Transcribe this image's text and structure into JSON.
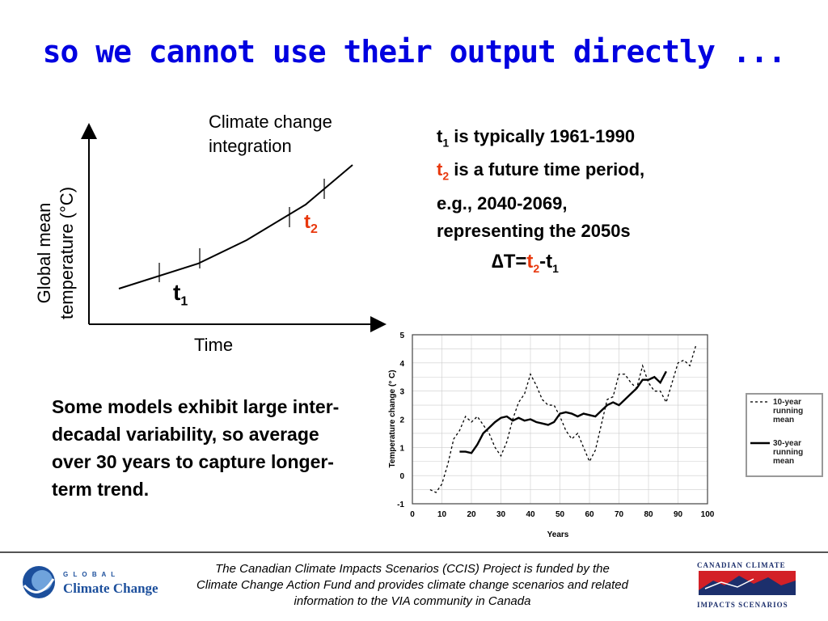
{
  "title": "so we cannot use their output directly ...",
  "schematic": {
    "annotation_line1": "Climate change",
    "annotation_line2": "integration",
    "ylabel_line1": "Global mean",
    "ylabel_line2": "temperature (°C)",
    "xlabel": "Time",
    "t1_base": "t",
    "t1_sub": "1",
    "t2_base": "t",
    "t2_sub": "2"
  },
  "notes": {
    "line1_t": "t",
    "line1_sub": "1",
    "line1_rest": " is typically 1961-1990",
    "line2_t": "t",
    "line2_sub": "2",
    "line2_rest": " is a future time period,",
    "line3": "e.g., 2040-2069,",
    "line4": "representing the 2050s"
  },
  "delta": {
    "symbol": "∆",
    "eq": "T=",
    "t2": "t",
    "t2_sub": "2",
    "minus_t": "-t",
    "t1_sub": "1"
  },
  "variability_text": "Some models exhibit large inter-decadal variability, so average over 30 years to capture longer-term trend.",
  "footer": {
    "line1": "The Canadian Climate Impacts Scenarios (CCIS) Project is funded by the",
    "line2": "Climate Change Action Fund and provides climate change scenarios and related",
    "line3": "information to the VIA community in Canada"
  },
  "logos": {
    "gcc_small": "G L O B A L",
    "gcc_big": "Climate Change",
    "ccis_top": "CANADIAN CLIMATE",
    "ccis_bottom": "IMPACTS SCENARIOS"
  },
  "colors": {
    "title": "#0000e0",
    "accent_red": "#e8380d"
  },
  "chart_data": [
    {
      "type": "line",
      "xlabel": "Years",
      "ylabel": "Temperature change (° C)",
      "xlim": [
        0,
        100
      ],
      "ylim": [
        -1,
        5
      ],
      "xticks": [
        0,
        10,
        20,
        30,
        40,
        50,
        60,
        70,
        80,
        90,
        100
      ],
      "yticks": [
        -1,
        0,
        1,
        2,
        3,
        4,
        5
      ],
      "grid": true,
      "legend": "right",
      "series": [
        {
          "name": "10-year running mean",
          "style": "dashed",
          "x": [
            6,
            8,
            10,
            12,
            14,
            16,
            18,
            20,
            22,
            24,
            26,
            28,
            30,
            32,
            34,
            36,
            38,
            40,
            42,
            44,
            46,
            48,
            50,
            52,
            54,
            56,
            58,
            60,
            62,
            64,
            66,
            68,
            70,
            72,
            74,
            76,
            78,
            80,
            82,
            84,
            86,
            88,
            90,
            92,
            94,
            96
          ],
          "y": [
            -0.5,
            -0.6,
            -0.3,
            0.4,
            1.3,
            1.6,
            2.1,
            1.9,
            2.1,
            1.8,
            1.5,
            1.0,
            0.7,
            1.2,
            2.0,
            2.6,
            2.9,
            3.6,
            3.2,
            2.7,
            2.5,
            2.5,
            2.1,
            1.6,
            1.3,
            1.5,
            1.0,
            0.5,
            0.9,
            1.8,
            2.7,
            2.8,
            3.6,
            3.6,
            3.3,
            3.1,
            3.9,
            3.3,
            3.0,
            3.0,
            2.6,
            3.3,
            4.0,
            4.1,
            3.9,
            4.6
          ]
        },
        {
          "name": "30-year running mean",
          "style": "solid",
          "x": [
            16,
            18,
            20,
            22,
            24,
            26,
            28,
            30,
            32,
            34,
            36,
            38,
            40,
            42,
            44,
            46,
            48,
            50,
            52,
            54,
            56,
            58,
            60,
            62,
            64,
            66,
            68,
            70,
            72,
            74,
            76,
            78,
            80,
            82,
            84,
            86
          ],
          "y": [
            0.85,
            0.85,
            0.8,
            1.1,
            1.5,
            1.7,
            1.9,
            2.05,
            2.1,
            1.95,
            2.05,
            1.95,
            2.0,
            1.9,
            1.85,
            1.8,
            1.9,
            2.2,
            2.25,
            2.2,
            2.1,
            2.2,
            2.15,
            2.1,
            2.3,
            2.5,
            2.6,
            2.5,
            2.7,
            2.9,
            3.1,
            3.4,
            3.4,
            3.5,
            3.3,
            3.7
          ]
        }
      ]
    }
  ]
}
